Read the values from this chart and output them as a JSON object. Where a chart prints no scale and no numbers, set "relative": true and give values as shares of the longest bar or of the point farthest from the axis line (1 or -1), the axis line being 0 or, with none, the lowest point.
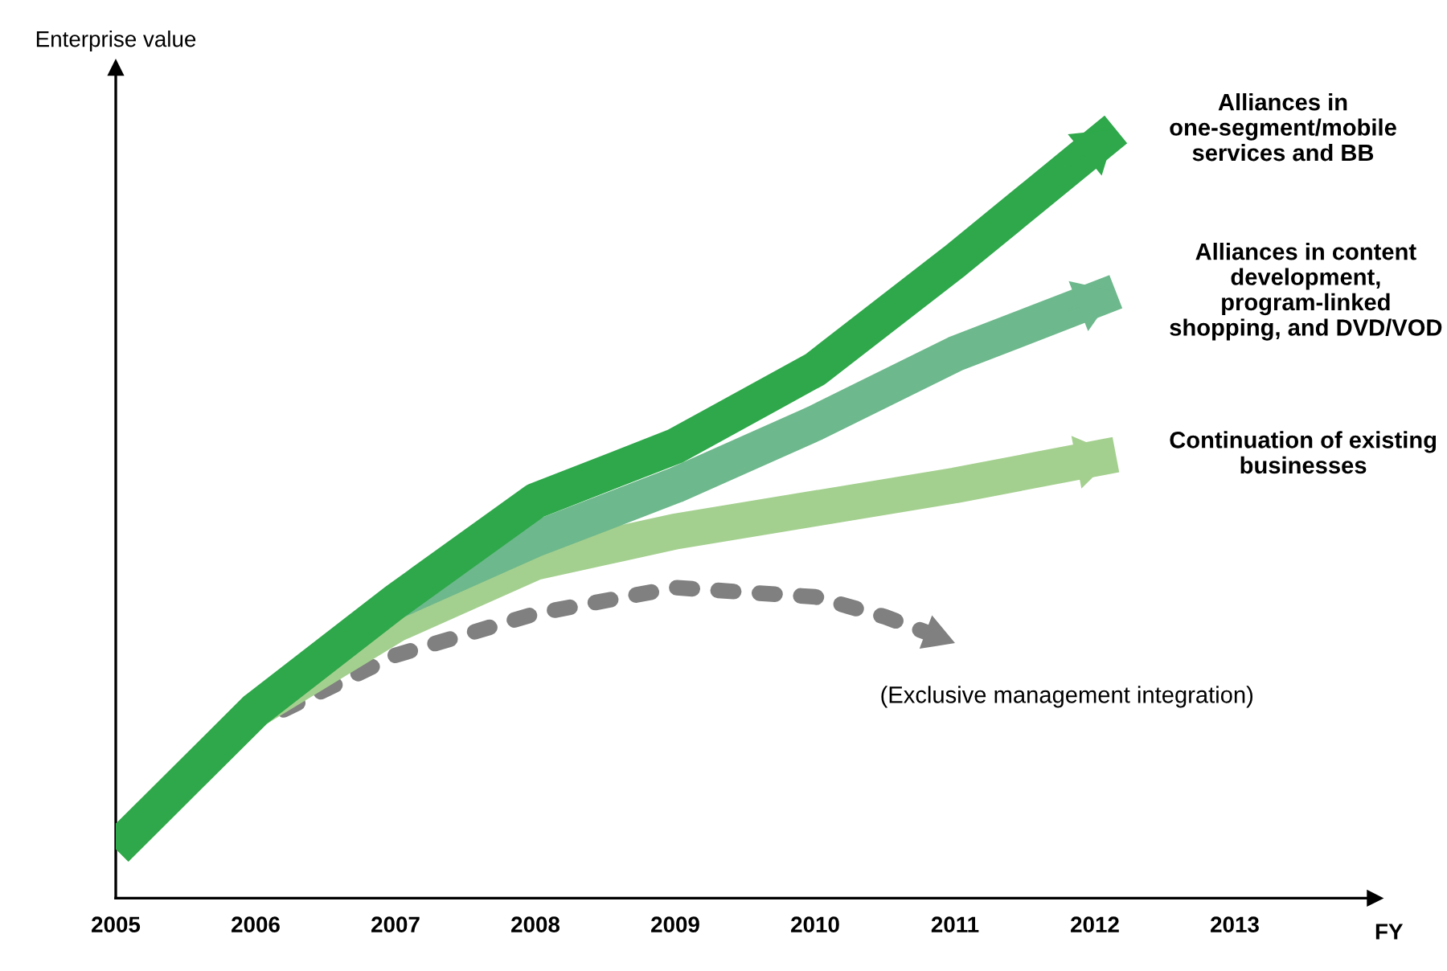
{
  "chart_data": {
    "type": "line",
    "relative": true,
    "xlabel": "FY",
    "ylabel": "Enterprise value",
    "xlim": [
      2005,
      2014
    ],
    "xticks": [
      2005,
      2006,
      2007,
      2008,
      2009,
      2010,
      2011,
      2012,
      2013
    ],
    "tick_labels": "x",
    "grid": false,
    "series": [
      {
        "name": "Alliances in one-segment/mobile services and BB",
        "color": "#2ea84a",
        "line_style": "solid",
        "x": [
          2005,
          2006,
          2007,
          2008,
          2009,
          2010,
          2011,
          2012.15
        ],
        "values": [
          0.064,
          0.245,
          0.386,
          0.517,
          0.588,
          0.688,
          0.829,
          1
        ]
      },
      {
        "name": "Alliances in content development, program-linked shopping, and DVD/VOD",
        "color": "#6db88c",
        "line_style": "solid",
        "x": [
          2007,
          2008,
          2009,
          2010,
          2011,
          2012.15
        ],
        "values": [
          0.386,
          0.467,
          0.537,
          0.618,
          0.708,
          0.789
        ]
      },
      {
        "name": "Continuation of existing businesses",
        "color": "#a4d08f",
        "line_style": "solid",
        "x": [
          2005,
          2006,
          2007,
          2008,
          2009,
          2010,
          2011,
          2012.15
        ],
        "values": [
          0.064,
          0.245,
          0.356,
          0.437,
          0.477,
          0.507,
          0.537,
          0.577
        ]
      },
      {
        "name": "(Exclusive management integration)",
        "color": "#808080",
        "line_style": "dotted",
        "x": [
          2006.2,
          2007,
          2008,
          2009,
          2010,
          2010.5,
          2011
        ],
        "values": [
          0.245,
          0.316,
          0.37,
          0.404,
          0.392,
          0.366,
          0.332
        ]
      }
    ]
  }
}
